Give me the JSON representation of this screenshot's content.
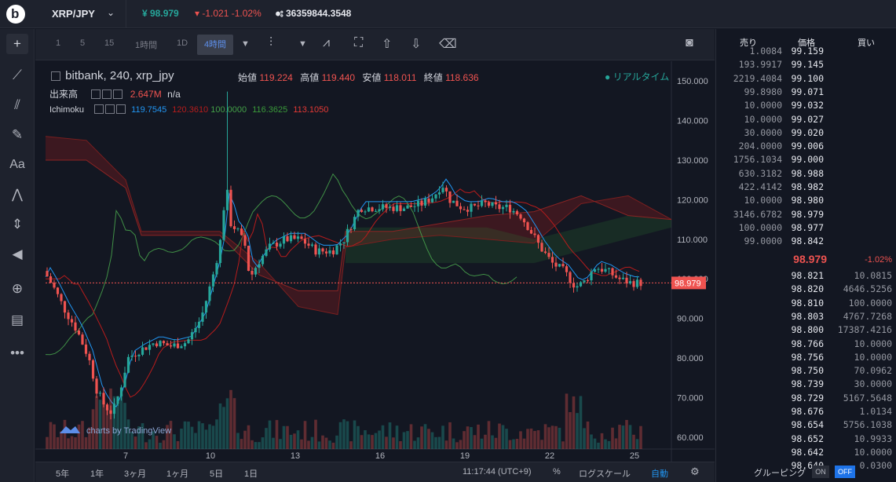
{
  "header": {
    "pair": "XRP/JPY",
    "price": "¥ 98.979",
    "change": "-1.021 -1.02%",
    "volume": "36359844.3548"
  },
  "chart_toolbar": {
    "intervals": [
      "1",
      "5",
      "15",
      "1時間",
      "1D",
      "4時間"
    ],
    "active_interval": "4時間"
  },
  "legend": {
    "symbol": "bitbank, 240, xrp_jpy",
    "open_label": "始値",
    "open": "119.224",
    "high_label": "高値",
    "high": "119.440",
    "low_label": "安値",
    "low": "118.011",
    "close_label": "終値",
    "close": "118.636",
    "realtime": "リアルタイム",
    "volume_label": "出来高",
    "volume_value": "2.647M",
    "volume_na": "n/a",
    "ichimoku_label": "Ichimoku",
    "ichimoku_values": [
      "119.7545",
      "120.3610",
      "100.0000",
      "116.3625",
      "113.1050"
    ],
    "ichimoku_colors": [
      "#2196f3",
      "#b71c1c",
      "#43a047",
      "#3a9a3a",
      "#e53935"
    ]
  },
  "chart_data": {
    "type": "candlestick",
    "y_ticks": [
      "150.000",
      "140.000",
      "130.000",
      "120.000",
      "110.000",
      "100.000",
      "90.000",
      "80.000",
      "70.000",
      "60.000"
    ],
    "x_ticks": [
      "7",
      "10",
      "13",
      "16",
      "19",
      "22",
      "25"
    ],
    "ylim": [
      57,
      155
    ],
    "last_price_label": "98.979",
    "watermark": "charts by TradingView"
  },
  "bottom_bar": {
    "ranges": [
      "5年",
      "1年",
      "3ヶ月",
      "1ヶ月",
      "5日",
      "1日"
    ],
    "time": "11:17:44 (UTC+9)",
    "percent": "%",
    "log": "ログスケール",
    "auto": "自動"
  },
  "orderbook": {
    "head": {
      "sell": "売り",
      "price": "価格",
      "buy": "買い"
    },
    "asks": [
      {
        "amount": "1.0084",
        "price": "99.159"
      },
      {
        "amount": "193.9917",
        "price": "99.145"
      },
      {
        "amount": "2219.4084",
        "price": "99.100"
      },
      {
        "amount": "99.8980",
        "price": "99.071"
      },
      {
        "amount": "10.0000",
        "price": "99.032"
      },
      {
        "amount": "10.0000",
        "price": "99.027"
      },
      {
        "amount": "30.0000",
        "price": "99.020"
      },
      {
        "amount": "204.0000",
        "price": "99.006"
      },
      {
        "amount": "1756.1034",
        "price": "99.000"
      },
      {
        "amount": "630.3182",
        "price": "98.988"
      },
      {
        "amount": "422.4142",
        "price": "98.982"
      },
      {
        "amount": "10.0000",
        "price": "98.980"
      },
      {
        "amount": "3146.6782",
        "price": "98.979"
      },
      {
        "amount": "100.0000",
        "price": "98.977"
      },
      {
        "amount": "99.0000",
        "price": "98.842"
      }
    ],
    "mid_price": "98.979",
    "mid_pct": "-1.02%",
    "bids": [
      {
        "price": "98.821",
        "amount": "10.0815"
      },
      {
        "price": "98.820",
        "amount": "4646.5256"
      },
      {
        "price": "98.810",
        "amount": "100.0000"
      },
      {
        "price": "98.803",
        "amount": "4767.7268"
      },
      {
        "price": "98.800",
        "amount": "17387.4216"
      },
      {
        "price": "98.766",
        "amount": "10.0000"
      },
      {
        "price": "98.756",
        "amount": "10.0000"
      },
      {
        "price": "98.750",
        "amount": "70.0962"
      },
      {
        "price": "98.739",
        "amount": "30.0000"
      },
      {
        "price": "98.729",
        "amount": "5167.5648"
      },
      {
        "price": "98.676",
        "amount": "1.0134"
      },
      {
        "price": "98.654",
        "amount": "5756.1038"
      },
      {
        "price": "98.652",
        "amount": "10.9933"
      },
      {
        "price": "98.642",
        "amount": "10.0000"
      },
      {
        "price": "98.640",
        "amount": "0.0300"
      }
    ],
    "grouping_label": "グルーピング",
    "toggle_on": "ON",
    "toggle_off": "OFF"
  }
}
